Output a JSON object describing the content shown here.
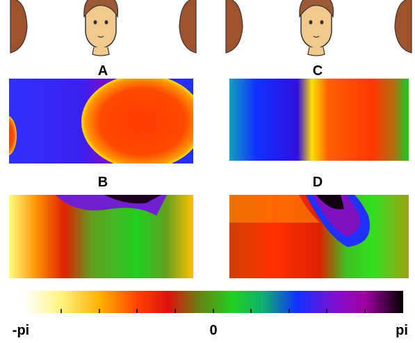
{
  "panels": [
    {
      "label": "A"
    },
    {
      "label": "B"
    },
    {
      "label": "C"
    },
    {
      "label": "D"
    }
  ],
  "colorbar": {
    "labels": [
      "-pi",
      "0",
      "pi"
    ]
  }
}
